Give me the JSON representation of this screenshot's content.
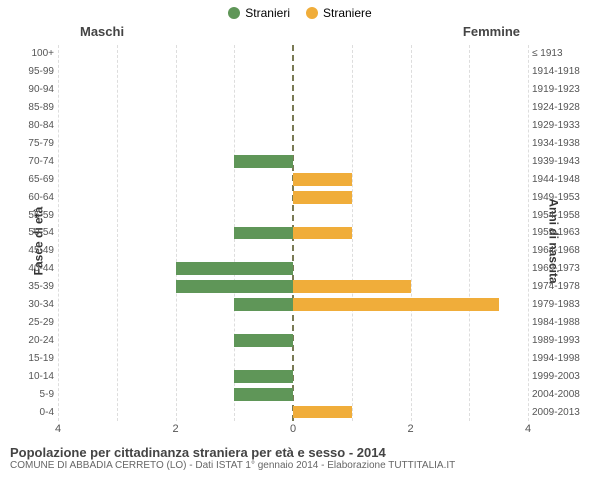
{
  "legend": {
    "male": {
      "label": "Stranieri",
      "color": "#5f9658"
    },
    "female": {
      "label": "Straniere",
      "color": "#f0ad3a"
    },
    "fontsize": 12
  },
  "panel_titles": {
    "left": "Maschi",
    "right": "Femmine",
    "fontsize": 13,
    "color": "#444444"
  },
  "axis_labels": {
    "left": "Fasce di età",
    "right": "Anni di nascita",
    "fontsize": 12,
    "color": "#333333"
  },
  "chart": {
    "type": "population-pyramid",
    "xmax": 4,
    "xticks": [
      4,
      2,
      0,
      2,
      4
    ],
    "tick_fontsize": 11,
    "category_fontsize": 10,
    "category_color": "#555555",
    "bar_male_color": "#5f9658",
    "bar_female_color": "#f0ad3a",
    "grid_color": "#dddddd",
    "center_line_color": "#7a7a55",
    "background": "#ffffff",
    "rows": [
      {
        "age": "100+",
        "birth": "≤ 1913",
        "m": 0,
        "f": 0
      },
      {
        "age": "95-99",
        "birth": "1914-1918",
        "m": 0,
        "f": 0
      },
      {
        "age": "90-94",
        "birth": "1919-1923",
        "m": 0,
        "f": 0
      },
      {
        "age": "85-89",
        "birth": "1924-1928",
        "m": 0,
        "f": 0
      },
      {
        "age": "80-84",
        "birth": "1929-1933",
        "m": 0,
        "f": 0
      },
      {
        "age": "75-79",
        "birth": "1934-1938",
        "m": 0,
        "f": 0
      },
      {
        "age": "70-74",
        "birth": "1939-1943",
        "m": 1,
        "f": 0
      },
      {
        "age": "65-69",
        "birth": "1944-1948",
        "m": 0,
        "f": 1
      },
      {
        "age": "60-64",
        "birth": "1949-1953",
        "m": 0,
        "f": 1
      },
      {
        "age": "55-59",
        "birth": "1954-1958",
        "m": 0,
        "f": 0
      },
      {
        "age": "50-54",
        "birth": "1959-1963",
        "m": 1,
        "f": 1
      },
      {
        "age": "45-49",
        "birth": "1964-1968",
        "m": 0,
        "f": 0
      },
      {
        "age": "40-44",
        "birth": "1969-1973",
        "m": 2,
        "f": 0
      },
      {
        "age": "35-39",
        "birth": "1974-1978",
        "m": 2,
        "f": 2
      },
      {
        "age": "30-34",
        "birth": "1979-1983",
        "m": 1,
        "f": 3.5
      },
      {
        "age": "25-29",
        "birth": "1984-1988",
        "m": 0,
        "f": 0
      },
      {
        "age": "20-24",
        "birth": "1989-1993",
        "m": 1,
        "f": 0
      },
      {
        "age": "15-19",
        "birth": "1994-1998",
        "m": 0,
        "f": 0
      },
      {
        "age": "10-14",
        "birth": "1999-2003",
        "m": 1,
        "f": 0
      },
      {
        "age": "5-9",
        "birth": "2004-2008",
        "m": 1,
        "f": 0
      },
      {
        "age": "0-4",
        "birth": "2009-2013",
        "m": 0,
        "f": 1
      }
    ]
  },
  "footer": {
    "title": "Popolazione per cittadinanza straniera per età e sesso - 2014",
    "subtitle": "COMUNE DI ABBADIA CERRETO (LO) - Dati ISTAT 1° gennaio 2014 - Elaborazione TUTTITALIA.IT",
    "title_fontsize": 13,
    "subtitle_fontsize": 10,
    "title_color": "#444444",
    "subtitle_color": "#666666"
  }
}
